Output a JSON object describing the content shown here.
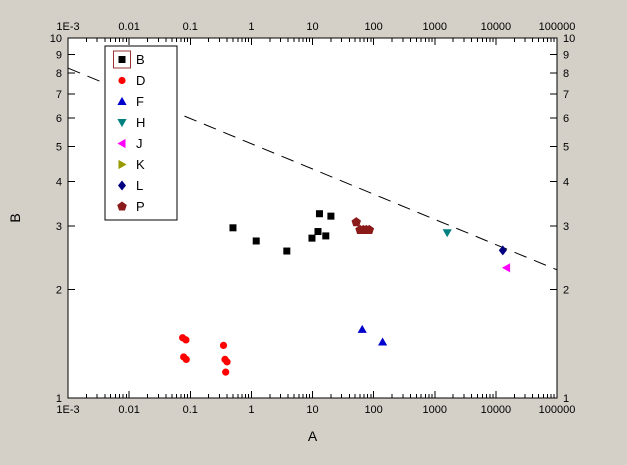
{
  "figure": {
    "background_color": "#d4d0c8",
    "plot_background_color": "#ffffff",
    "frame_color": "#000000"
  },
  "chart_data": {
    "type": "scatter",
    "title": "",
    "xlabel": "A",
    "ylabel": "B",
    "xscale": "log",
    "yscale": "log",
    "xlim": [
      0.001,
      100000
    ],
    "ylim": [
      1,
      10
    ],
    "x_tick_labels": [
      "1E-3",
      "0.01",
      "0.1",
      "1",
      "10",
      "100",
      "1000",
      "10000",
      "100000"
    ],
    "x_tick_values": [
      0.001,
      0.01,
      0.1,
      1,
      10,
      100,
      1000,
      10000,
      100000
    ],
    "y_tick_labels": [
      "1",
      "2",
      "3",
      "4",
      "5",
      "6",
      "7",
      "8",
      "9",
      "10"
    ],
    "y_tick_values": [
      1,
      2,
      3,
      4,
      5,
      6,
      7,
      8,
      9,
      10
    ],
    "grid": false,
    "mirrored_axes": true,
    "legend": {
      "position": "top-left",
      "highlighted_entry": "B",
      "highlight_color": "#993333",
      "border_color": "#000000",
      "background_color": "#ffffff"
    },
    "series": [
      {
        "name": "B",
        "marker": "square",
        "color": "#000000",
        "points": [
          [
            0.5,
            2.97
          ],
          [
            1.2,
            2.73
          ],
          [
            3.8,
            2.56
          ],
          [
            9.8,
            2.78
          ],
          [
            12.3,
            2.9
          ],
          [
            13,
            3.25
          ],
          [
            16.5,
            2.82
          ],
          [
            20,
            3.2
          ]
        ]
      },
      {
        "name": "D",
        "marker": "circle",
        "color": "#ff0000",
        "points": [
          [
            0.075,
            1.47
          ],
          [
            0.085,
            1.45
          ],
          [
            0.078,
            1.3
          ],
          [
            0.086,
            1.28
          ],
          [
            0.35,
            1.4
          ],
          [
            0.37,
            1.28
          ],
          [
            0.4,
            1.26
          ],
          [
            0.38,
            1.18
          ]
        ]
      },
      {
        "name": "F",
        "marker": "triangle-up",
        "color": "#0000cc",
        "points": [
          [
            65,
            1.55
          ],
          [
            140,
            1.43
          ]
        ]
      },
      {
        "name": "H",
        "marker": "triangle-down",
        "color": "#008080",
        "points": [
          [
            1600,
            2.88
          ]
        ]
      },
      {
        "name": "J",
        "marker": "triangle-left",
        "color": "#ff00ff",
        "points": [
          [
            15000,
            2.3
          ]
        ]
      },
      {
        "name": "K",
        "marker": "triangle-right",
        "color": "#999900",
        "points": []
      },
      {
        "name": "L",
        "marker": "diamond",
        "color": "#000080",
        "points": [
          [
            13000,
            2.57
          ]
        ]
      },
      {
        "name": "P",
        "marker": "pentagon",
        "color": "#8b1a1a",
        "points": [
          [
            52,
            3.08
          ],
          [
            60,
            2.93
          ],
          [
            68,
            2.93
          ],
          [
            76,
            2.93
          ],
          [
            85,
            2.93
          ]
        ]
      }
    ],
    "trend_line": {
      "style": "dashed",
      "color": "#000000",
      "points": [
        [
          0.001,
          8.25
        ],
        [
          100000,
          2.27
        ]
      ]
    }
  }
}
